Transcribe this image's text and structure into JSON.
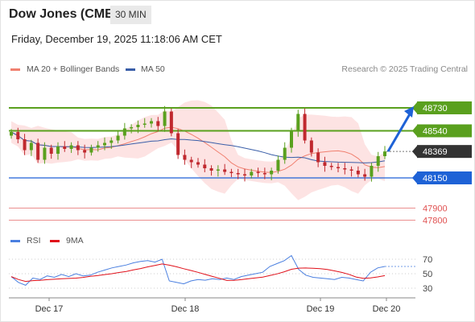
{
  "header": {
    "title": "Dow Jones (CME)",
    "interval": "30 MIN",
    "datetime": "Friday, December 19, 2025 11:18:06 AM CET"
  },
  "legend": {
    "ma20": "MA 20 + Bollinger Bands",
    "ma50": "MA 50",
    "credit": "Research © 2025 Trading Central",
    "rsi": "RSI",
    "ma9": "9MA"
  },
  "colors": {
    "ma20": "#f08070",
    "ma50": "#3a5ea8",
    "bollinger_fill": "#fde0e0",
    "resistance": "#5aa01e",
    "support": "#1e62d6",
    "target_support": "#e05050",
    "candle_up": "#5aa01e",
    "candle_down": "#c0282e",
    "price_tag": "#333333",
    "rsi_line": "#4a7fe0",
    "rsi_ma": "#e0101a"
  },
  "chart_data": [
    {
      "type": "candlestick",
      "title": "",
      "x_labels": [
        "Dec 17",
        "Dec 18",
        "Dec 19",
        "Dec 20"
      ],
      "levels": [
        {
          "value": 48730,
          "label": "48730",
          "kind": "resistance"
        },
        {
          "value": 48540,
          "label": "48540",
          "kind": "resistance"
        },
        {
          "value": 48369,
          "label": "48369",
          "kind": "last-price"
        },
        {
          "value": 48150,
          "label": "48150",
          "kind": "support"
        },
        {
          "value": 47900,
          "label": "47900",
          "kind": "target"
        },
        {
          "value": 47800,
          "label": "47800",
          "kind": "target"
        }
      ],
      "close_series": [
        48530,
        48470,
        48380,
        48440,
        48300,
        48400,
        48350,
        48410,
        48390,
        48420,
        48380,
        48360,
        48400,
        48420,
        48440,
        48460,
        48500,
        48560,
        48570,
        48590,
        48600,
        48620,
        48580,
        48700,
        48520,
        48340,
        48300,
        48280,
        48260,
        48230,
        48210,
        48220,
        48200,
        48190,
        48180,
        48170,
        48200,
        48190,
        48180,
        48210,
        48300,
        48400,
        48540,
        48680,
        48460,
        48360,
        48280,
        48250,
        48240,
        48230,
        48220,
        48210,
        48180,
        48160,
        48250,
        48330,
        48369
      ],
      "projection": {
        "from": 48369,
        "to": 48730
      }
    },
    {
      "type": "line",
      "title": "",
      "series_names": [
        "RSI",
        "9MA"
      ],
      "y_ticks": [
        30,
        50,
        70
      ],
      "ylim": [
        20,
        80
      ],
      "rsi": [
        46,
        38,
        34,
        44,
        42,
        47,
        45,
        49,
        46,
        50,
        47,
        48,
        52,
        55,
        58,
        60,
        62,
        65,
        67,
        68,
        66,
        70,
        40,
        38,
        36,
        40,
        42,
        41,
        43,
        42,
        44,
        42,
        46,
        48,
        50,
        52,
        60,
        64,
        68,
        75,
        56,
        48,
        45,
        44,
        43,
        42,
        45,
        44,
        42,
        40,
        52,
        58,
        60
      ]
    }
  ]
}
